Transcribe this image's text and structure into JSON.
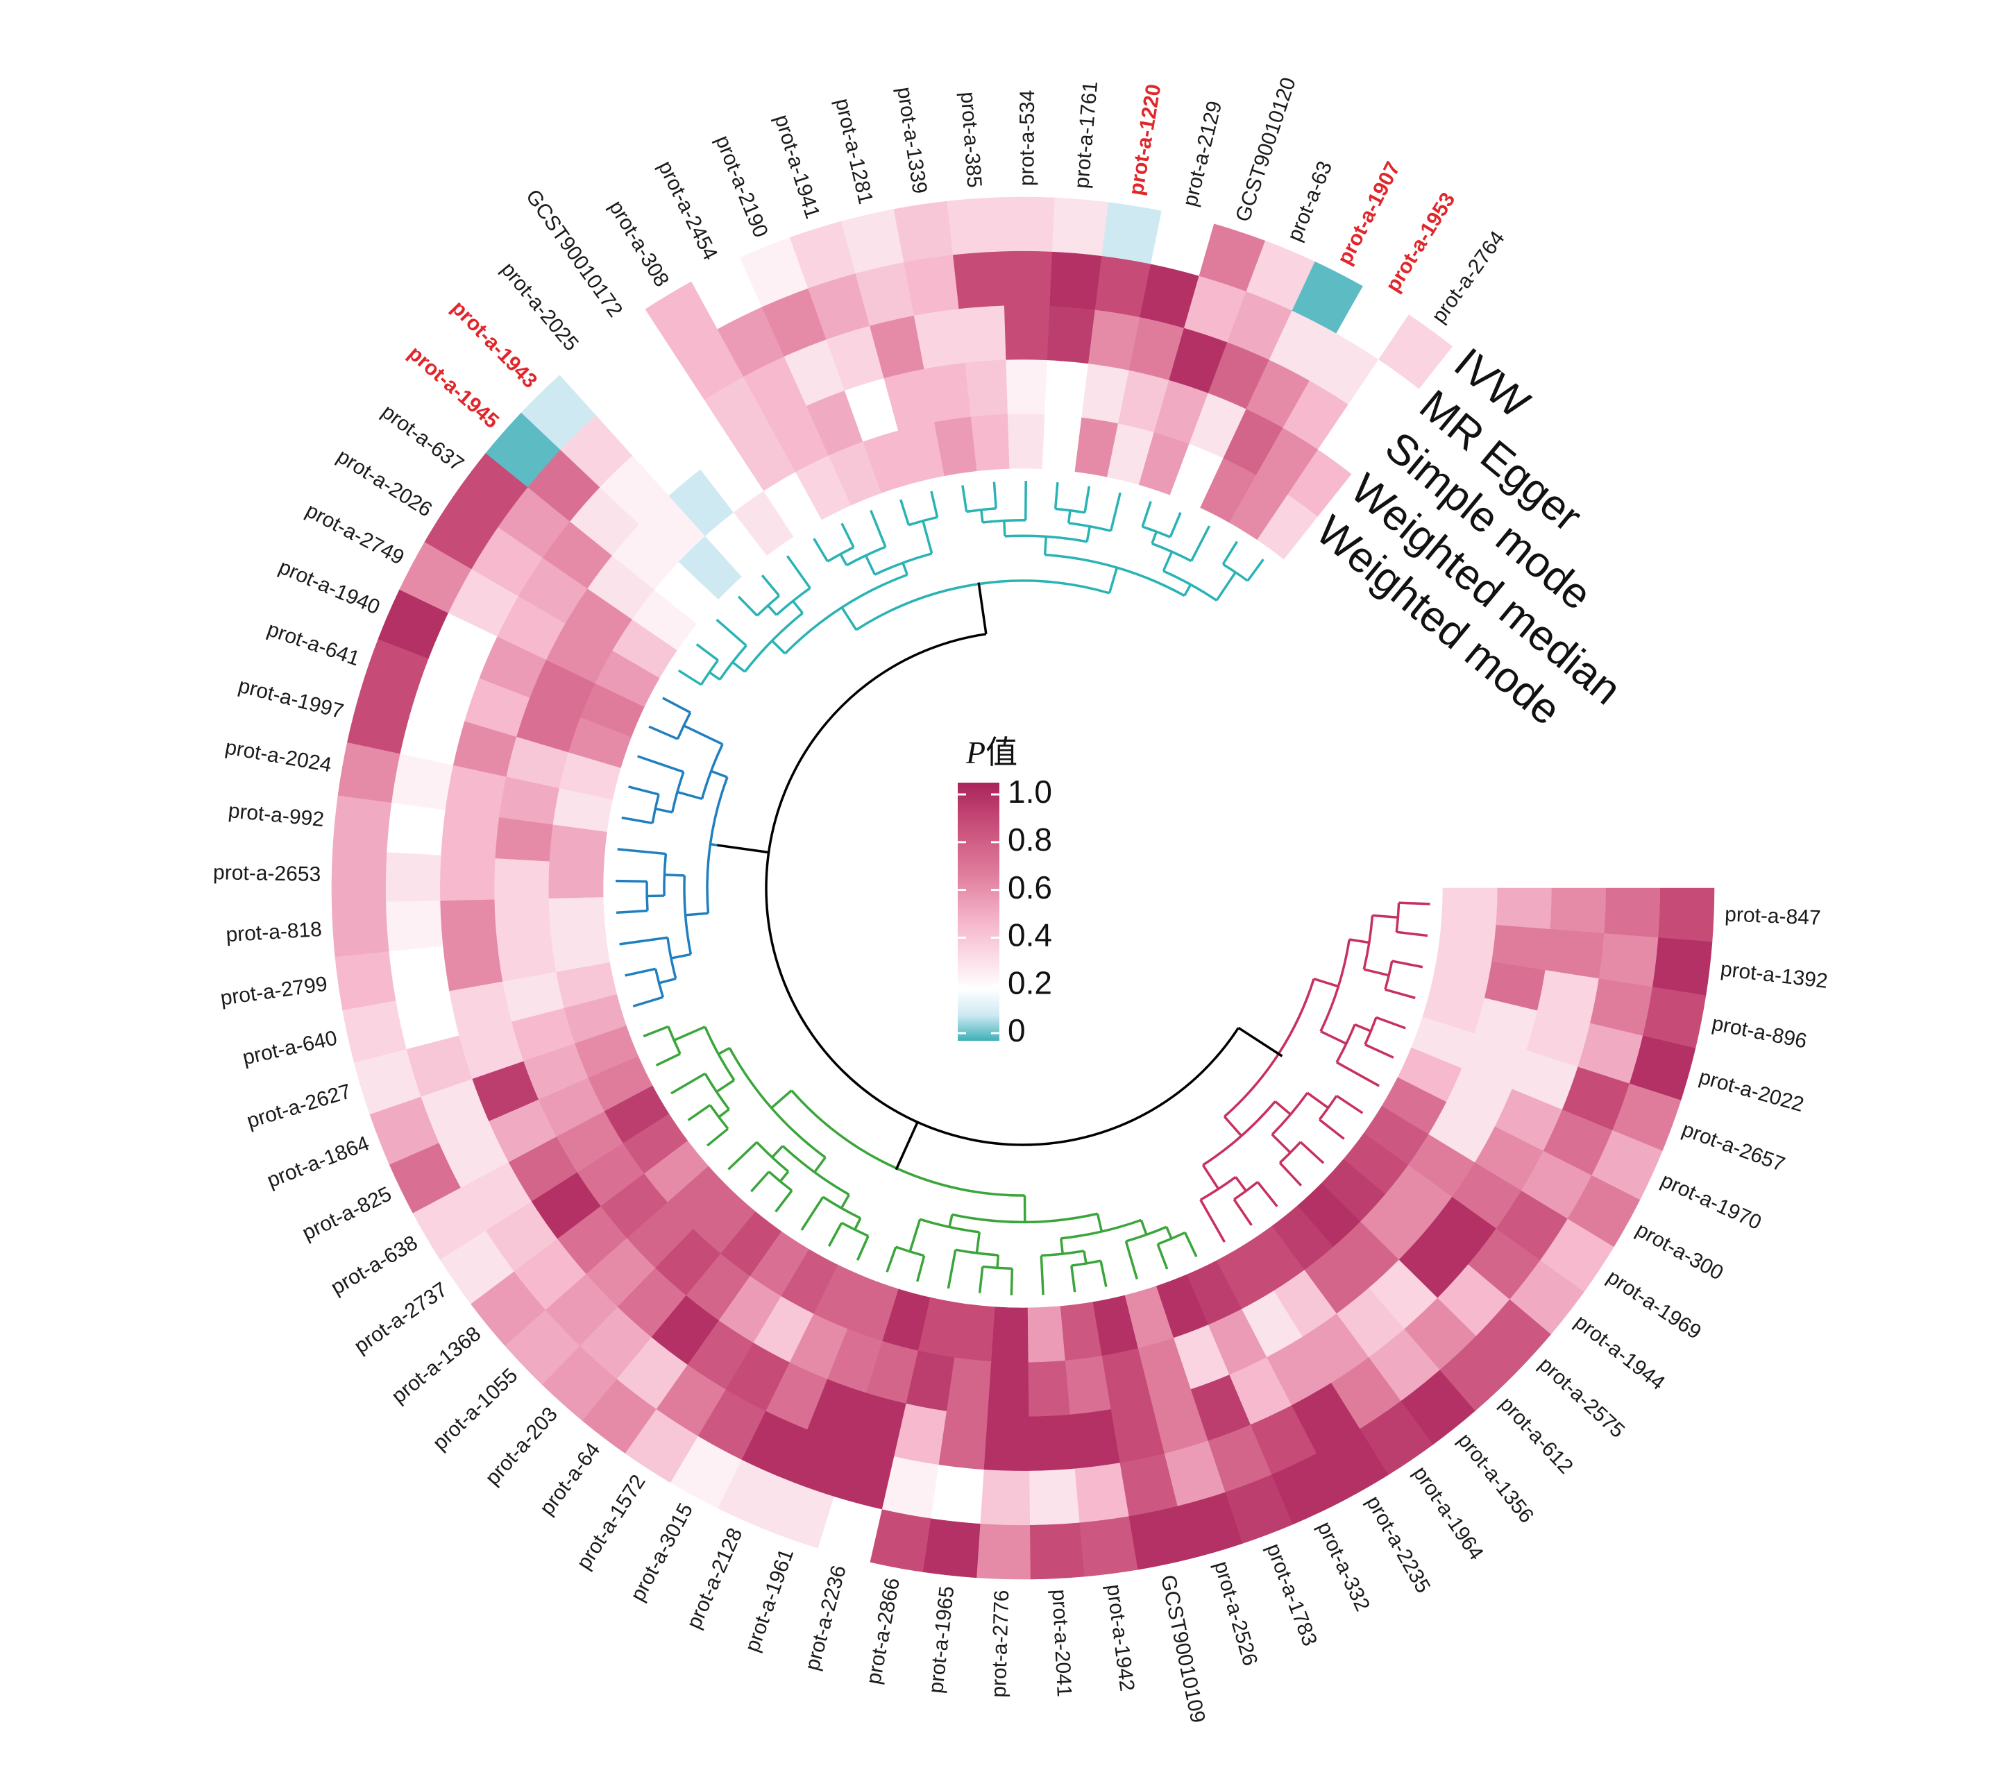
{
  "chart_data": {
    "type": "heatmap",
    "layout": "circular",
    "methods": [
      "IVW",
      "MR Egger",
      "Simple mode",
      "Weighted median",
      "Weighted mode"
    ],
    "legend": {
      "title_italic": "P",
      "title_suffix": "值",
      "ticks": [
        1.0,
        0.8,
        0.6,
        0.4,
        0.2,
        0
      ],
      "tick_labels": [
        "1.0",
        "0.8",
        "0.6",
        "0.4",
        "0.2",
        "0"
      ],
      "range": [
        0,
        1
      ]
    },
    "colors": {
      "zero": "#3fb0b7",
      "low": "#cfe9f3",
      "white": "#ffffff",
      "mid_low": "#f6b9cd",
      "mid": "#df7c9c",
      "mid_high": "#c64b77",
      "high": "#a9245b",
      "highlight_label": "#e0262b",
      "root": "#000000"
    },
    "clusters": [
      {
        "color": "#c8305e",
        "from": 0,
        "to": 13
      },
      {
        "color": "#3aa53a",
        "from": 14,
        "to": 35
      },
      {
        "color": "#1f7fbf",
        "from": 36,
        "to": 46
      },
      {
        "color": "#2ab3b5",
        "from": 47,
        "to": 68
      }
    ],
    "items": [
      {
        "label": "prot-a-847",
        "values": [
          0.85,
          0.7,
          0.6,
          0.5,
          0.35
        ]
      },
      {
        "label": "prot-a-1392",
        "values": [
          0.95,
          0.6,
          0.65,
          0.65,
          0.35
        ]
      },
      {
        "label": "prot-a-896",
        "values": [
          0.85,
          0.65,
          0.35,
          0.7,
          0.35
        ]
      },
      {
        "label": "prot-a-2022",
        "values": [
          0.95,
          0.5,
          0.35,
          0.3,
          0.35
        ]
      },
      {
        "label": "prot-a-2657",
        "values": [
          0.65,
          0.85,
          0.3,
          0.3,
          0.3
        ]
      },
      {
        "label": "prot-a-1970",
        "values": [
          0.5,
          0.7,
          0.5,
          0.3,
          0.45
        ]
      },
      {
        "label": "prot-a-300",
        "values": [
          0.65,
          0.55,
          0.6,
          0.3,
          0.7
        ]
      },
      {
        "label": "prot-a-1969",
        "values": [
          0.45,
          0.8,
          0.7,
          0.65,
          0.8
        ]
      },
      {
        "label": "prot-a-1944",
        "values": [
          0.5,
          0.75,
          0.95,
          0.6,
          0.85
        ]
      },
      {
        "label": "prot-a-2575",
        "values": [
          0.8,
          0.45,
          0.95,
          0.6,
          0.9
        ]
      },
      {
        "label": "prot-a-612",
        "values": [
          0.8,
          0.6,
          0.35,
          0.75,
          0.95
        ]
      },
      {
        "label": "prot-a-1356",
        "values": [
          0.95,
          0.5,
          0.4,
          0.75,
          0.9
        ]
      },
      {
        "label": "prot-a-1964",
        "values": [
          0.9,
          0.65,
          0.55,
          0.4,
          0.85
        ]
      },
      {
        "label": "prot-a-2235",
        "values": [
          0.95,
          0.95,
          0.55,
          0.3,
          0.85
        ]
      },
      {
        "label": "prot-a-332",
        "values": [
          0.95,
          0.85,
          0.45,
          0.55,
          0.9
        ]
      },
      {
        "label": "prot-a-1783",
        "values": [
          0.9,
          0.75,
          0.9,
          0.35,
          0.95
        ]
      },
      {
        "label": "prot-a-2526",
        "values": [
          0.95,
          0.55,
          0.65,
          0.65,
          0.6
        ]
      },
      {
        "label": "GCST90010109",
        "values": [
          0.95,
          0.8,
          0.85,
          0.85,
          0.95
        ]
      },
      {
        "label": "prot-a-1942",
        "values": [
          0.8,
          0.45,
          0.95,
          0.7,
          0.8
        ]
      },
      {
        "label": "prot-a-2041",
        "values": [
          0.85,
          0.3,
          0.95,
          0.8,
          0.55
        ]
      },
      {
        "label": "prot-a-2776",
        "values": [
          0.6,
          0.4,
          0.95,
          0.95,
          0.95
        ]
      },
      {
        "label": "prot-a-1965",
        "values": [
          0.95,
          0.2,
          0.75,
          0.75,
          0.85
        ]
      },
      {
        "label": "prot-a-2866",
        "values": [
          0.85,
          0.25,
          0.45,
          0.9,
          0.85
        ]
      },
      {
        "label": "prot-a-2236",
        "values": [
          0.2,
          0.95,
          0.95,
          0.75,
          0.95
        ]
      },
      {
        "label": "prot-a-1961",
        "values": [
          0.3,
          0.95,
          0.95,
          0.7,
          0.75
        ]
      },
      {
        "label": "prot-a-2128",
        "values": [
          0.3,
          0.95,
          0.7,
          0.6,
          0.75
        ]
      },
      {
        "label": "prot-a-3015",
        "values": [
          0.25,
          0.8,
          0.85,
          0.4,
          0.8
        ]
      },
      {
        "label": "prot-a-1572",
        "values": [
          0.4,
          0.65,
          0.8,
          0.55,
          0.7
        ]
      },
      {
        "label": "prot-a-64",
        "values": [
          0.6,
          0.4,
          0.95,
          0.75,
          0.85
        ]
      },
      {
        "label": "prot-a-203",
        "values": [
          0.55,
          0.5,
          0.7,
          0.85,
          0.75
        ]
      },
      {
        "label": "prot-a-1055",
        "values": [
          0.5,
          0.55,
          0.6,
          0.75,
          0.75
        ]
      },
      {
        "label": "prot-a-1368",
        "values": [
          0.55,
          0.45,
          0.7,
          0.8,
          0.6
        ]
      },
      {
        "label": "prot-a-2737",
        "values": [
          0.3,
          0.4,
          0.95,
          0.7,
          0.8
        ]
      },
      {
        "label": "prot-a-638",
        "values": [
          0.35,
          0.35,
          0.75,
          0.65,
          0.9
        ]
      },
      {
        "label": "prot-a-825",
        "values": [
          0.7,
          0.3,
          0.5,
          0.55,
          0.65
        ]
      },
      {
        "label": "prot-a-1864",
        "values": [
          0.5,
          0.3,
          0.9,
          0.5,
          0.6
        ]
      },
      {
        "label": "prot-a-2627",
        "values": [
          0.3,
          0.4,
          0.35,
          0.45,
          0.5
        ]
      },
      {
        "label": "prot-a-640",
        "values": [
          0.35,
          0.2,
          0.35,
          0.3,
          0.4
        ]
      },
      {
        "label": "prot-a-2799",
        "values": [
          0.45,
          0.2,
          0.6,
          0.35,
          0.3
        ]
      },
      {
        "label": "prot-a-818",
        "values": [
          0.5,
          0.25,
          0.6,
          0.35,
          0.3
        ]
      },
      {
        "label": "prot-a-2653",
        "values": [
          0.5,
          0.3,
          0.45,
          0.35,
          0.5
        ]
      },
      {
        "label": "prot-a-992",
        "values": [
          0.5,
          0.2,
          0.45,
          0.6,
          0.5
        ]
      },
      {
        "label": "prot-a-2024",
        "values": [
          0.6,
          0.25,
          0.45,
          0.5,
          0.3
        ]
      },
      {
        "label": "prot-a-1997",
        "values": [
          0.85,
          0.2,
          0.6,
          0.4,
          0.35
        ]
      },
      {
        "label": "prot-a-641",
        "values": [
          0.85,
          0.2,
          0.45,
          0.7,
          0.6
        ]
      },
      {
        "label": "prot-a-1940",
        "values": [
          0.95,
          0.2,
          0.55,
          0.7,
          0.65
        ]
      },
      {
        "label": "prot-a-2749",
        "values": [
          0.6,
          0.35,
          0.45,
          0.6,
          0.55
        ]
      },
      {
        "label": "prot-a-2026",
        "values": [
          0.85,
          0.45,
          0.5,
          0.6,
          0.4
        ]
      },
      {
        "label": "prot-a-637",
        "values": [
          0.85,
          0.55,
          0.6,
          0.3,
          0.25
        ]
      },
      {
        "label": "prot-a-1945",
        "values": [
          0.02,
          0.7,
          0.3,
          0.25,
          0.2
        ],
        "highlight": true
      },
      {
        "label": "prot-a-1943",
        "values": [
          0.1,
          0.35,
          0.25,
          0.25,
          0.1
        ],
        "highlight": true
      },
      {
        "label": "prot-a-2025",
        "values": [
          0.2,
          0.2,
          0.2,
          0.1,
          0.2
        ]
      },
      {
        "label": "GCST90010172",
        "values": [
          0.2,
          0.2,
          0.2,
          0.2,
          0.3
        ]
      },
      {
        "label": "prot-a-308",
        "values": [
          0.45,
          0.45,
          0.4,
          0.4,
          0.2
        ]
      },
      {
        "label": "prot-a-2454",
        "values": [
          0.2,
          0.55,
          0.45,
          0.45,
          0.35
        ]
      },
      {
        "label": "prot-a-2190",
        "values": [
          0.25,
          0.6,
          0.3,
          0.5,
          0.4
        ]
      },
      {
        "label": "prot-a-1941",
        "values": [
          0.35,
          0.5,
          0.35,
          0.2,
          0.45
        ]
      },
      {
        "label": "prot-a-1281",
        "values": [
          0.3,
          0.4,
          0.6,
          0.45,
          0.45
        ]
      },
      {
        "label": "prot-a-1339",
        "values": [
          0.4,
          0.45,
          0.35,
          0.45,
          0.55
        ]
      },
      {
        "label": "prot-a-385",
        "values": [
          0.35,
          0.85,
          0.35,
          0.4,
          0.45
        ]
      },
      {
        "label": "prot-a-534",
        "values": [
          0.35,
          0.85,
          0.85,
          0.25,
          0.3
        ]
      },
      {
        "label": "prot-a-1761",
        "values": [
          0.3,
          0.95,
          0.9,
          0.2,
          0.2
        ]
      },
      {
        "label": "prot-a-1220",
        "values": [
          0.1,
          0.85,
          0.6,
          0.3,
          0.6
        ],
        "highlight": true
      },
      {
        "label": "prot-a-2129",
        "values": [
          0.2,
          0.95,
          0.65,
          0.4,
          0.3
        ]
      },
      {
        "label": "GCST90010120",
        "values": [
          0.65,
          0.45,
          0.95,
          0.5,
          0.55
        ]
      },
      {
        "label": "prot-a-63",
        "values": [
          0.35,
          0.5,
          0.75,
          0.3,
          0.2
        ]
      },
      {
        "label": "prot-a-1907",
        "values": [
          0.02,
          0.3,
          0.6,
          0.75,
          0.65
        ],
        "highlight": true
      },
      {
        "label": "prot-a-1953",
        "values": [
          0.2,
          0.3,
          0.45,
          0.6,
          0.6
        ],
        "highlight": true
      },
      {
        "label": "prot-a-2764",
        "values": [
          0.35,
          0.2,
          0.2,
          0.45,
          0.35
        ]
      }
    ]
  }
}
